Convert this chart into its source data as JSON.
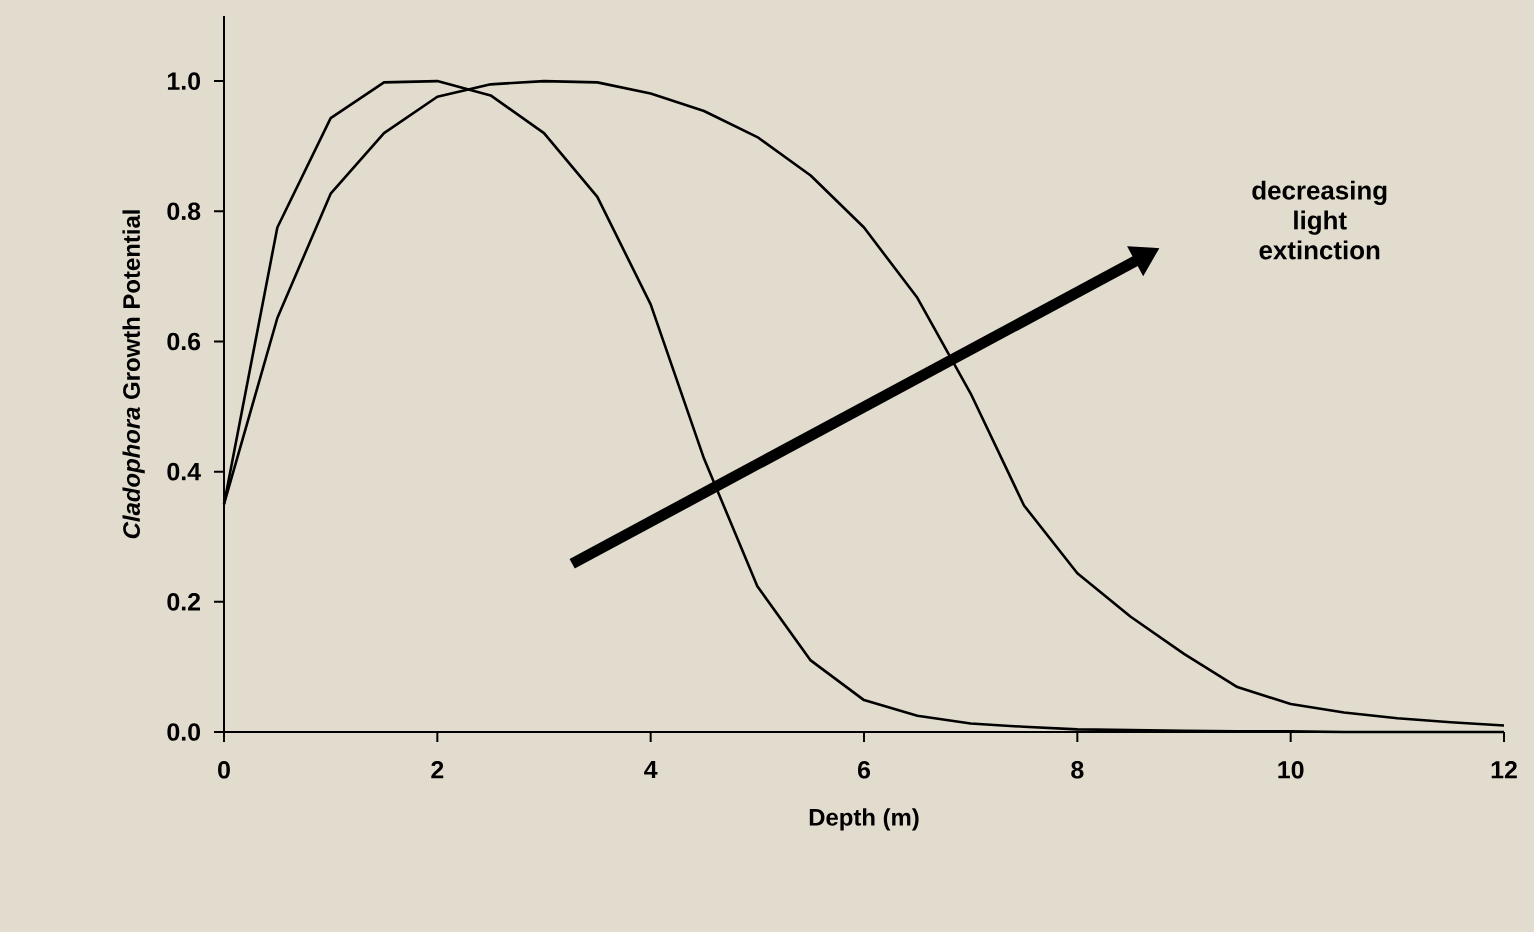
{
  "chart_data": {
    "type": "line",
    "xlabel": "Depth (m)",
    "ylabel": "*Cladophora* Growth Potential",
    "annotations": [
      "decreasing light extinction"
    ],
    "x": [
      0,
      0.5,
      1,
      1.5,
      2,
      2.5,
      3,
      3.5,
      4,
      4.5,
      5,
      5.5,
      6,
      6.5,
      7,
      7.5,
      8,
      8.5,
      9,
      9.5,
      10,
      10.5,
      11,
      11.5,
      12
    ],
    "series": [
      {
        "color": "#000000",
        "values": [
          0.35,
          0.775,
          0.943,
          0.998,
          1.0,
          0.978,
          0.92,
          0.822,
          0.657,
          0.42,
          0.224,
          0.11,
          0.049,
          0.025,
          0.013,
          0.008,
          0.004,
          0.003,
          0.002,
          0.001,
          0.001,
          0,
          0,
          0,
          0
        ]
      },
      {
        "color": "#000000",
        "values": [
          0.35,
          0.636,
          0.827,
          0.92,
          0.976,
          0.995,
          1.0,
          0.998,
          0.981,
          0.954,
          0.914,
          0.855,
          0.775,
          0.667,
          0.52,
          0.348,
          0.244,
          0.177,
          0.12,
          0.069,
          0.043,
          0.03,
          0.021,
          0.015,
          0.01
        ]
      }
    ],
    "xlim": [
      0,
      12
    ],
    "ylim": [
      0,
      1.1
    ],
    "xticks": [
      0,
      2,
      4,
      6,
      8,
      10,
      12
    ],
    "yticks": [
      {
        "value": 0,
        "label": "0.0"
      },
      {
        "value": 0.2,
        "label": "0.2"
      },
      {
        "value": 0.4,
        "label": "0.4"
      },
      {
        "value": 0.6,
        "label": "0.6"
      },
      {
        "value": 0.8,
        "label": "0.8"
      },
      {
        "value": 1.0,
        "label": "1.0"
      }
    ],
    "grid": false,
    "line_style": "solid",
    "marker": "none"
  }
}
